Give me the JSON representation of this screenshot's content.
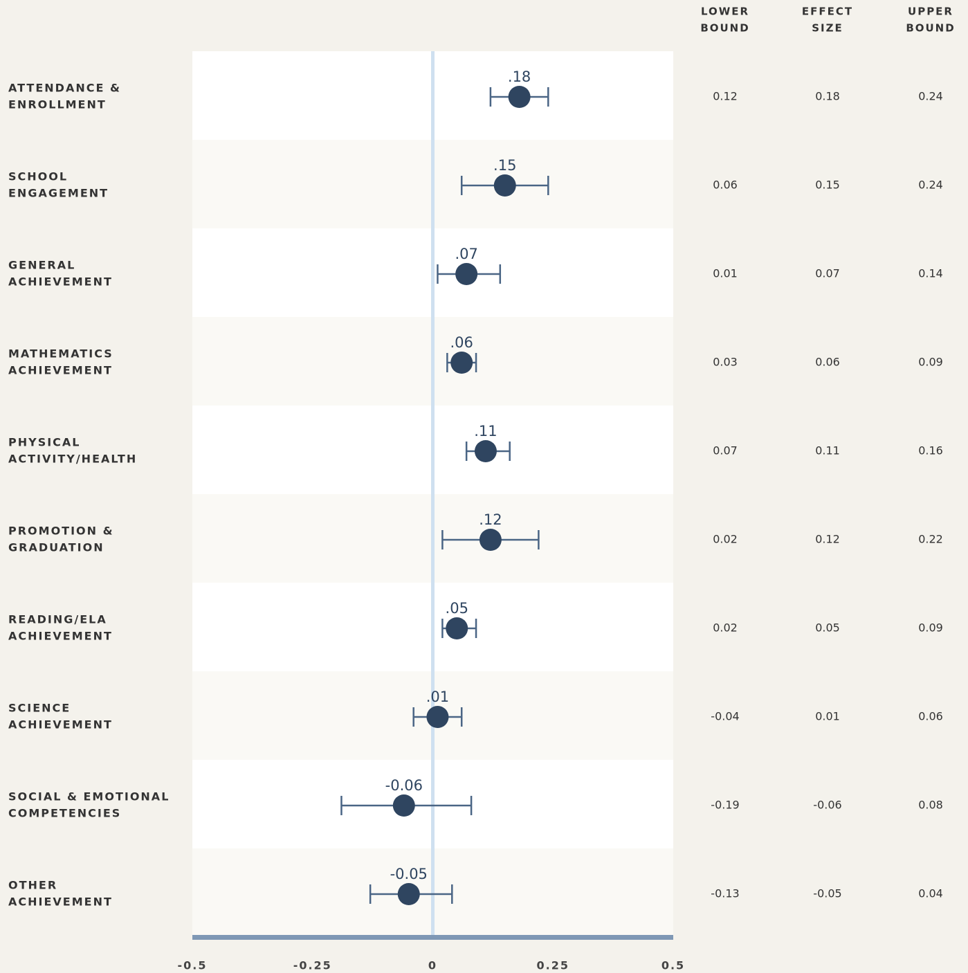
{
  "chart_data": {
    "type": "forest",
    "categories": [
      [
        "ATTENDANCE &",
        "ENROLLMENT"
      ],
      [
        "SCHOOL",
        "ENGAGEMENT"
      ],
      [
        "GENERAL",
        "ACHIEVEMENT"
      ],
      [
        "MATHEMATICS",
        "ACHIEVEMENT"
      ],
      [
        "PHYSICAL",
        "ACTIVITY/HEALTH"
      ],
      [
        "PROMOTION &",
        "GRADUATION"
      ],
      [
        "READING/ELA",
        "ACHIEVEMENT"
      ],
      [
        "SCIENCE",
        "ACHIEVEMENT"
      ],
      [
        "SOCIAL & EMOTIONAL",
        "COMPETENCIES"
      ],
      [
        "OTHER",
        "ACHIEVEMENT"
      ]
    ],
    "values": [
      0.18,
      0.15,
      0.07,
      0.06,
      0.11,
      0.12,
      0.05,
      0.01,
      -0.06,
      -0.05
    ],
    "value_labels": [
      ".18",
      ".15",
      ".07",
      ".06",
      ".11",
      ".12",
      ".05",
      ".01",
      "-0.06",
      "-0.05"
    ],
    "lower": [
      0.12,
      0.06,
      0.01,
      0.03,
      0.07,
      0.02,
      0.02,
      -0.04,
      -0.19,
      -0.13
    ],
    "upper": [
      0.24,
      0.24,
      0.14,
      0.09,
      0.16,
      0.22,
      0.09,
      0.06,
      0.08,
      0.04
    ],
    "columns": [
      [
        "LOWER",
        "BOUND"
      ],
      [
        "EFFECT",
        "SIZE"
      ],
      [
        "UPPER",
        "BOUND"
      ]
    ],
    "color": "#2f4560",
    "xlim": [
      -0.5,
      0.5
    ],
    "xticks": [
      -0.5,
      -0.25,
      0,
      0.25,
      0.5
    ]
  }
}
